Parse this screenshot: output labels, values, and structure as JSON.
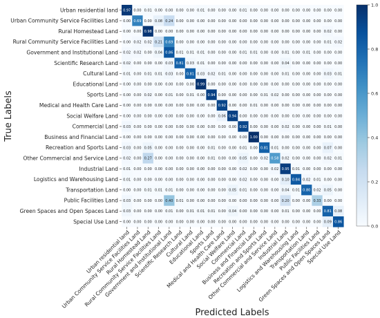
{
  "chart_data": {
    "type": "heatmap",
    "title": "",
    "xlabel": "Predicted Labels",
    "ylabel": "True Labels",
    "categories": [
      "Urban residential land",
      "Urban Community Service Facilities Land",
      "Rural Homestead Land",
      "Rural Community Service Facilities Land",
      "Government and Institutional Land",
      "Scientific Research Land",
      "Cultural Land",
      "Educational Land",
      "Sports Land",
      "Medical and Health Care Land",
      "Social Welfare Land",
      "Commercial Land",
      "Business and Financial Land",
      "Recreation and Sports Land",
      "Other Commercial and Service Land",
      "Industrial Land",
      "Logistics and Warehousing Land",
      "Transportation Land",
      "Public Facilities Land",
      "Green Spaces and Open Spaces Land",
      "Special Use Land"
    ],
    "matrix": [
      [
        0.97,
        0.0,
        0.01,
        0.0,
        0.0,
        0.0,
        0.0,
        0.01,
        0.0,
        0.0,
        0.0,
        0.01,
        0.0,
        0.0,
        0.0,
        0.0,
        0.0,
        0.0,
        0.0,
        0.0,
        0.0
      ],
      [
        0.0,
        0.69,
        0.0,
        0.08,
        0.24,
        0.0,
        0.0,
        0.0,
        0.0,
        0.0,
        0.0,
        0.0,
        0.0,
        0.0,
        0.0,
        0.0,
        0.0,
        0.0,
        0.0,
        0.0,
        0.0
      ],
      [
        0.0,
        0.0,
        0.98,
        0.0,
        0.0,
        0.0,
        0.0,
        0.0,
        0.0,
        0.0,
        0.0,
        0.0,
        0.0,
        0.0,
        0.0,
        0.0,
        0.0,
        0.0,
        0.0,
        0.02,
        0.0
      ],
      [
        0.0,
        0.02,
        0.02,
        0.21,
        0.69,
        0.0,
        0.0,
        0.0,
        0.0,
        0.0,
        0.0,
        0.0,
        0.0,
        0.0,
        0.0,
        0.0,
        0.0,
        0.0,
        0.0,
        0.01,
        0.02
      ],
      [
        0.02,
        0.02,
        0.0,
        0.04,
        0.86,
        0.01,
        0.01,
        0.01,
        0.0,
        0.0,
        0.0,
        0.01,
        0.01,
        0.0,
        0.0,
        0.01,
        0.0,
        0.01,
        0.0,
        0.0,
        0.0
      ],
      [
        0.02,
        0.0,
        0.0,
        0.0,
        0.03,
        0.81,
        0.03,
        0.01,
        0.0,
        0.0,
        0.0,
        0.0,
        0.0,
        0.0,
        0.0,
        0.04,
        0.0,
        0.0,
        0.0,
        0.0,
        0.0
      ],
      [
        0.01,
        0.0,
        0.01,
        0.01,
        0.03,
        0.0,
        0.81,
        0.03,
        0.02,
        0.01,
        0.0,
        0.0,
        0.0,
        0.0,
        0.0,
        0.01,
        0.0,
        0.0,
        0.0,
        0.03,
        0.01
      ],
      [
        0.0,
        0.0,
        0.0,
        0.0,
        0.0,
        0.0,
        0.0,
        0.99,
        0.0,
        0.0,
        0.0,
        0.0,
        0.0,
        0.0,
        0.0,
        0.0,
        0.0,
        0.0,
        0.0,
        0.0,
        0.0
      ],
      [
        0.0,
        0.0,
        0.02,
        0.0,
        0.01,
        0.0,
        0.01,
        0.0,
        0.94,
        0.0,
        0.0,
        0.0,
        0.0,
        0.01,
        0.02,
        0.0,
        0.0,
        0.0,
        0.0,
        0.0,
        0.0
      ],
      [
        0.0,
        0.0,
        0.0,
        0.0,
        0.0,
        0.0,
        0.0,
        0.0,
        0.0,
        0.92,
        0.0,
        0.0,
        0.01,
        0.0,
        0.0,
        0.0,
        0.0,
        0.0,
        0.0,
        0.0,
        0.0
      ],
      [
        0.0,
        0.0,
        0.0,
        0.0,
        0.0,
        0.0,
        0.0,
        0.0,
        0.0,
        0.06,
        0.94,
        0.0,
        0.0,
        0.0,
        0.0,
        0.0,
        0.0,
        0.0,
        0.0,
        0.0,
        0.0
      ],
      [
        0.03,
        0.0,
        0.0,
        0.0,
        0.0,
        0.0,
        0.0,
        0.0,
        0.0,
        0.0,
        0.0,
        0.92,
        0.0,
        0.0,
        0.0,
        0.02,
        0.0,
        0.0,
        0.0,
        0.01,
        0.0
      ],
      [
        0.0,
        0.0,
        0.0,
        0.0,
        0.0,
        0.0,
        0.0,
        0.0,
        0.0,
        0.0,
        0.0,
        0.0,
        1.0,
        0.0,
        0.0,
        0.0,
        0.0,
        0.0,
        0.0,
        0.0,
        0.0
      ],
      [
        0.03,
        0.0,
        0.05,
        0.0,
        0.0,
        0.0,
        0.0,
        0.0,
        0.01,
        0.0,
        0.0,
        0.01,
        0.0,
        0.81,
        0.01,
        0.0,
        0.0,
        0.0,
        0.0,
        0.07,
        0.0
      ],
      [
        0.02,
        0.0,
        0.27,
        0.0,
        0.0,
        0.0,
        0.0,
        0.0,
        0.01,
        0.0,
        0.0,
        0.05,
        0.0,
        0.02,
        0.58,
        0.02,
        0.0,
        0.0,
        0.0,
        0.02,
        0.01
      ],
      [
        0.01,
        0.0,
        0.0,
        0.0,
        0.0,
        0.0,
        0.0,
        0.0,
        0.0,
        0.0,
        0.0,
        0.02,
        0.0,
        0.0,
        0.02,
        0.95,
        0.01,
        0.0,
        0.0,
        0.0,
        0.0
      ],
      [
        0.01,
        0.0,
        0.0,
        0.0,
        0.0,
        0.0,
        0.0,
        0.0,
        0.0,
        0.0,
        0.0,
        0.02,
        0.0,
        0.0,
        0.0,
        0.1,
        0.84,
        0.02,
        0.01,
        0.0,
        0.0
      ],
      [
        0.0,
        0.0,
        0.01,
        0.01,
        0.01,
        0.0,
        0.0,
        0.0,
        0.0,
        0.0,
        0.05,
        0.01,
        0.0,
        0.0,
        0.0,
        0.04,
        0.01,
        0.8,
        0.02,
        0.05,
        0.0
      ],
      [
        0.03,
        0.0,
        0.0,
        0.0,
        0.4,
        0.01,
        0.0,
        0.0,
        0.0,
        0.0,
        0.0,
        0.0,
        0.0,
        0.0,
        0.0,
        0.2,
        0.0,
        0.0,
        0.33,
        0.0,
        0.0
      ],
      [
        0.03,
        0.0,
        0.0,
        0.0,
        0.01,
        0.0,
        0.01,
        0.01,
        0.01,
        0.0,
        0.04,
        0.0,
        0.0,
        0.0,
        0.0,
        0.01,
        0.0,
        0.0,
        0.0,
        0.81,
        0.08
      ],
      [
        0.0,
        0.0,
        0.0,
        0.0,
        0.0,
        0.0,
        0.0,
        0.0,
        0.0,
        0.0,
        0.0,
        0.0,
        0.0,
        0.0,
        0.0,
        0.0,
        0.0,
        0.0,
        0.0,
        0.09,
        0.86
      ]
    ],
    "colorbar": {
      "min": 0.0,
      "max": 1.0,
      "ticks": [
        0.0,
        0.2,
        0.4,
        0.6,
        0.8,
        1.0
      ],
      "colormap": "Blues"
    },
    "grid": false,
    "legend": "colorbar-right"
  }
}
